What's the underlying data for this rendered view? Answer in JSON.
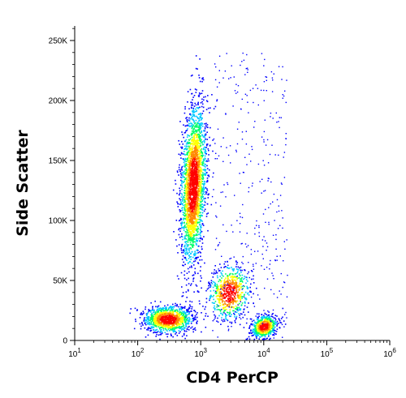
{
  "chart_data": {
    "type": "scatter",
    "xlabel": "CD4 PerCP",
    "ylabel": "Side Scatter",
    "x_scale": "log",
    "xlim": [
      10,
      1000000
    ],
    "ylim": [
      0,
      262144
    ],
    "x_ticks": [
      {
        "value": 10,
        "base": "10",
        "exp": "1"
      },
      {
        "value": 100,
        "base": "10",
        "exp": "2"
      },
      {
        "value": 1000,
        "base": "10",
        "exp": "3"
      },
      {
        "value": 10000,
        "base": "10",
        "exp": "4"
      },
      {
        "value": 100000,
        "base": "10",
        "exp": "5"
      },
      {
        "value": 1000000,
        "base": "10",
        "exp": "6"
      }
    ],
    "y_ticks": [
      {
        "value": 0,
        "label": "0"
      },
      {
        "value": 50000,
        "label": "50K"
      },
      {
        "value": 100000,
        "label": "100K"
      },
      {
        "value": 150000,
        "label": "150K"
      },
      {
        "value": 200000,
        "label": "200K"
      },
      {
        "value": 250000,
        "label": "250K"
      }
    ],
    "density_colors": [
      "#0000ff",
      "#00c8ff",
      "#00ff66",
      "#ffff00",
      "#ff8800",
      "#ff0000"
    ],
    "populations": [
      {
        "center_x": 750,
        "center_y": 130000,
        "density": "high"
      },
      {
        "center_x": 300,
        "center_y": 18000,
        "density": "high"
      },
      {
        "center_x": 2800,
        "center_y": 40000,
        "density": "medium"
      },
      {
        "center_x": 10000,
        "center_y": 12000,
        "density": "high"
      }
    ]
  }
}
